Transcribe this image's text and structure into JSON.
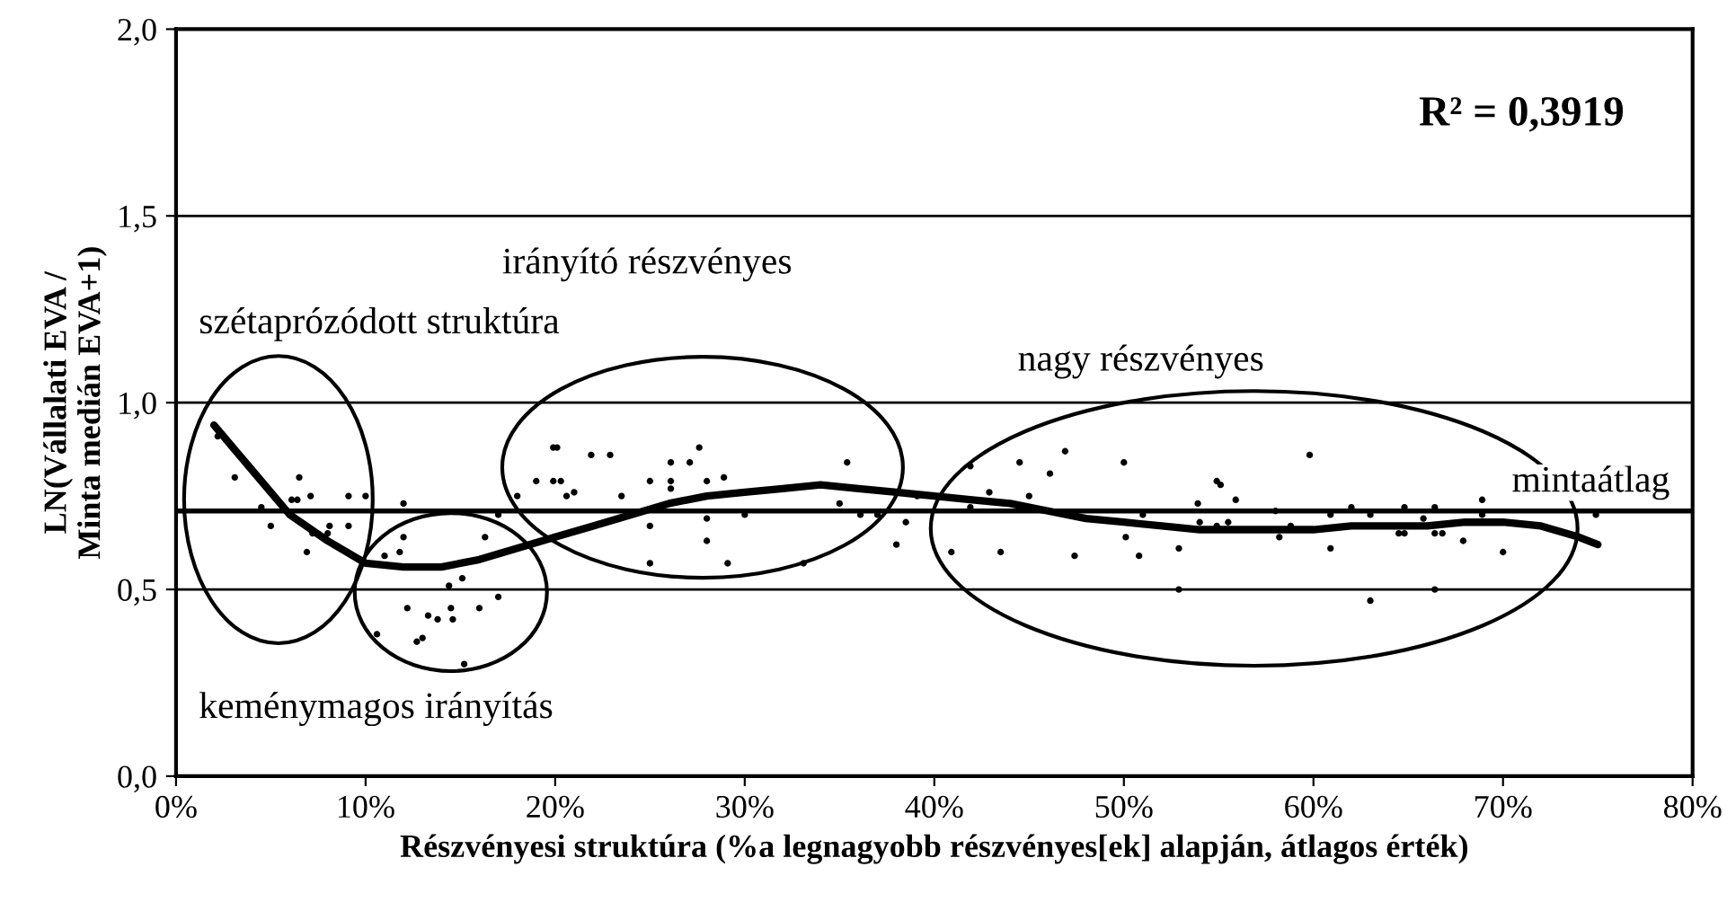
{
  "chart_data": {
    "type": "scatter",
    "xlabel": "Részvényesi struktúra (%a legnagyobb részvényes[ek] alapján, átlagos érték)",
    "ylabel": "LN(Vállalati EVA /\nMinta medián EVA+1)",
    "xlim": [
      0,
      80
    ],
    "ylim": [
      0,
      2
    ],
    "xticks": [
      {
        "value": 0,
        "label": "0%"
      },
      {
        "value": 10,
        "label": "10%"
      },
      {
        "value": 20,
        "label": "20%"
      },
      {
        "value": 30,
        "label": "30%"
      },
      {
        "value": 40,
        "label": "40%"
      },
      {
        "value": 50,
        "label": "50%"
      },
      {
        "value": 60,
        "label": "60%"
      },
      {
        "value": 70,
        "label": "70%"
      },
      {
        "value": 80,
        "label": "80%"
      }
    ],
    "yticks": [
      {
        "value": 0,
        "label": "0,0"
      },
      {
        "value": 0.5,
        "label": "0,5"
      },
      {
        "value": 1,
        "label": "1,0"
      },
      {
        "value": 1.5,
        "label": "1,5"
      },
      {
        "value": 2,
        "label": "2,0"
      }
    ],
    "grid": "y",
    "legend": false,
    "series": [
      {
        "type": "scatter",
        "marker": "circle",
        "color": "#000000",
        "x": [
          2.2,
          3.1,
          4.5,
          5.0,
          6.1,
          6.4,
          6.5,
          7.1,
          6.9,
          7.2,
          8.0,
          8.1,
          9.1,
          9.1,
          10.0,
          12.0,
          12.0,
          11.8,
          11.0,
          10.6,
          12.2,
          12.7,
          13.0,
          13.3,
          13.8,
          14.5,
          14.6,
          14.4,
          15.1,
          16.0,
          17.0,
          15.2,
          16.3,
          17.0,
          19.9,
          19.0,
          19.9,
          18.0,
          20.1,
          20.3,
          20.6,
          21.0,
          21.9,
          22.9,
          23.5,
          25.0,
          25.0,
          25.0,
          26.1,
          26.1,
          26.1,
          27.1,
          27.6,
          28.0,
          28.0,
          28.0,
          28.9,
          29.1,
          30.0,
          33.1,
          35.4,
          35.0,
          36.1,
          37.0,
          38.0,
          38.5,
          39.1,
          40.9,
          41.9,
          41.9,
          42.9,
          43.5,
          44.5,
          45.0,
          46.1,
          46.9,
          47.4,
          50.0,
          50.1,
          50.8,
          51.0,
          52.9,
          52.9,
          53.9,
          54.0,
          54.9,
          55.1,
          54.9,
          55.5,
          55.9,
          58.0,
          58.2,
          58.8,
          59.8,
          60.9,
          60.9,
          62.0,
          63.0,
          63.0,
          64.5,
          64.8,
          64.8,
          65.8,
          66.4,
          66.4,
          66.8,
          66.4,
          67.9,
          68.9,
          68.9,
          70.0,
          74.9
        ],
        "values": [
          0.91,
          0.8,
          0.72,
          0.67,
          0.74,
          0.74,
          0.8,
          0.75,
          0.6,
          0.65,
          0.65,
          0.67,
          0.75,
          0.67,
          0.75,
          0.73,
          0.64,
          0.6,
          0.59,
          0.38,
          0.45,
          0.36,
          0.37,
          0.43,
          0.42,
          0.45,
          0.42,
          0.51,
          0.53,
          0.45,
          0.48,
          0.3,
          0.64,
          0.7,
          0.88,
          0.79,
          0.79,
          0.75,
          0.88,
          0.79,
          0.75,
          0.76,
          0.86,
          0.86,
          0.75,
          0.79,
          0.67,
          0.57,
          0.84,
          0.79,
          0.77,
          0.84,
          0.88,
          0.79,
          0.69,
          0.63,
          0.8,
          0.57,
          0.7,
          0.57,
          0.84,
          0.73,
          0.7,
          0.7,
          0.62,
          0.68,
          0.75,
          0.6,
          0.83,
          0.72,
          0.76,
          0.6,
          0.84,
          0.75,
          0.81,
          0.87,
          0.59,
          0.84,
          0.64,
          0.59,
          0.7,
          0.61,
          0.5,
          0.73,
          0.68,
          0.79,
          0.78,
          0.67,
          0.68,
          0.74,
          0.71,
          0.64,
          0.67,
          0.86,
          0.7,
          0.61,
          0.72,
          0.7,
          0.47,
          0.65,
          0.65,
          0.72,
          0.69,
          0.72,
          0.65,
          0.65,
          0.5,
          0.63,
          0.74,
          0.7,
          0.6,
          0.7
        ]
      },
      {
        "type": "line",
        "color": "#000000",
        "x": [
          2,
          4,
          6,
          8,
          10,
          12,
          14,
          16,
          18,
          20,
          22,
          24,
          26,
          28,
          30,
          32,
          34,
          36,
          38,
          40,
          42,
          44,
          46,
          48,
          50,
          52,
          54,
          56,
          58,
          60,
          62,
          64,
          66,
          68,
          70,
          72,
          74,
          75
        ],
        "values": [
          0.94,
          0.82,
          0.7,
          0.63,
          0.57,
          0.56,
          0.56,
          0.58,
          0.61,
          0.64,
          0.67,
          0.7,
          0.73,
          0.75,
          0.76,
          0.77,
          0.78,
          0.77,
          0.76,
          0.75,
          0.74,
          0.73,
          0.71,
          0.69,
          0.68,
          0.67,
          0.66,
          0.66,
          0.66,
          0.66,
          0.67,
          0.67,
          0.67,
          0.68,
          0.68,
          0.67,
          0.64,
          0.62
        ]
      }
    ],
    "ref_lines": [
      {
        "axis": "y",
        "value": 0.71,
        "label": "mintaátlag",
        "color": "#000000"
      }
    ],
    "annotations": [
      "R² = 0,3919",
      "szétaprózódott struktúra",
      "irányító részvényes",
      "nagy részvényes",
      "keménymagos irányítás"
    ]
  }
}
